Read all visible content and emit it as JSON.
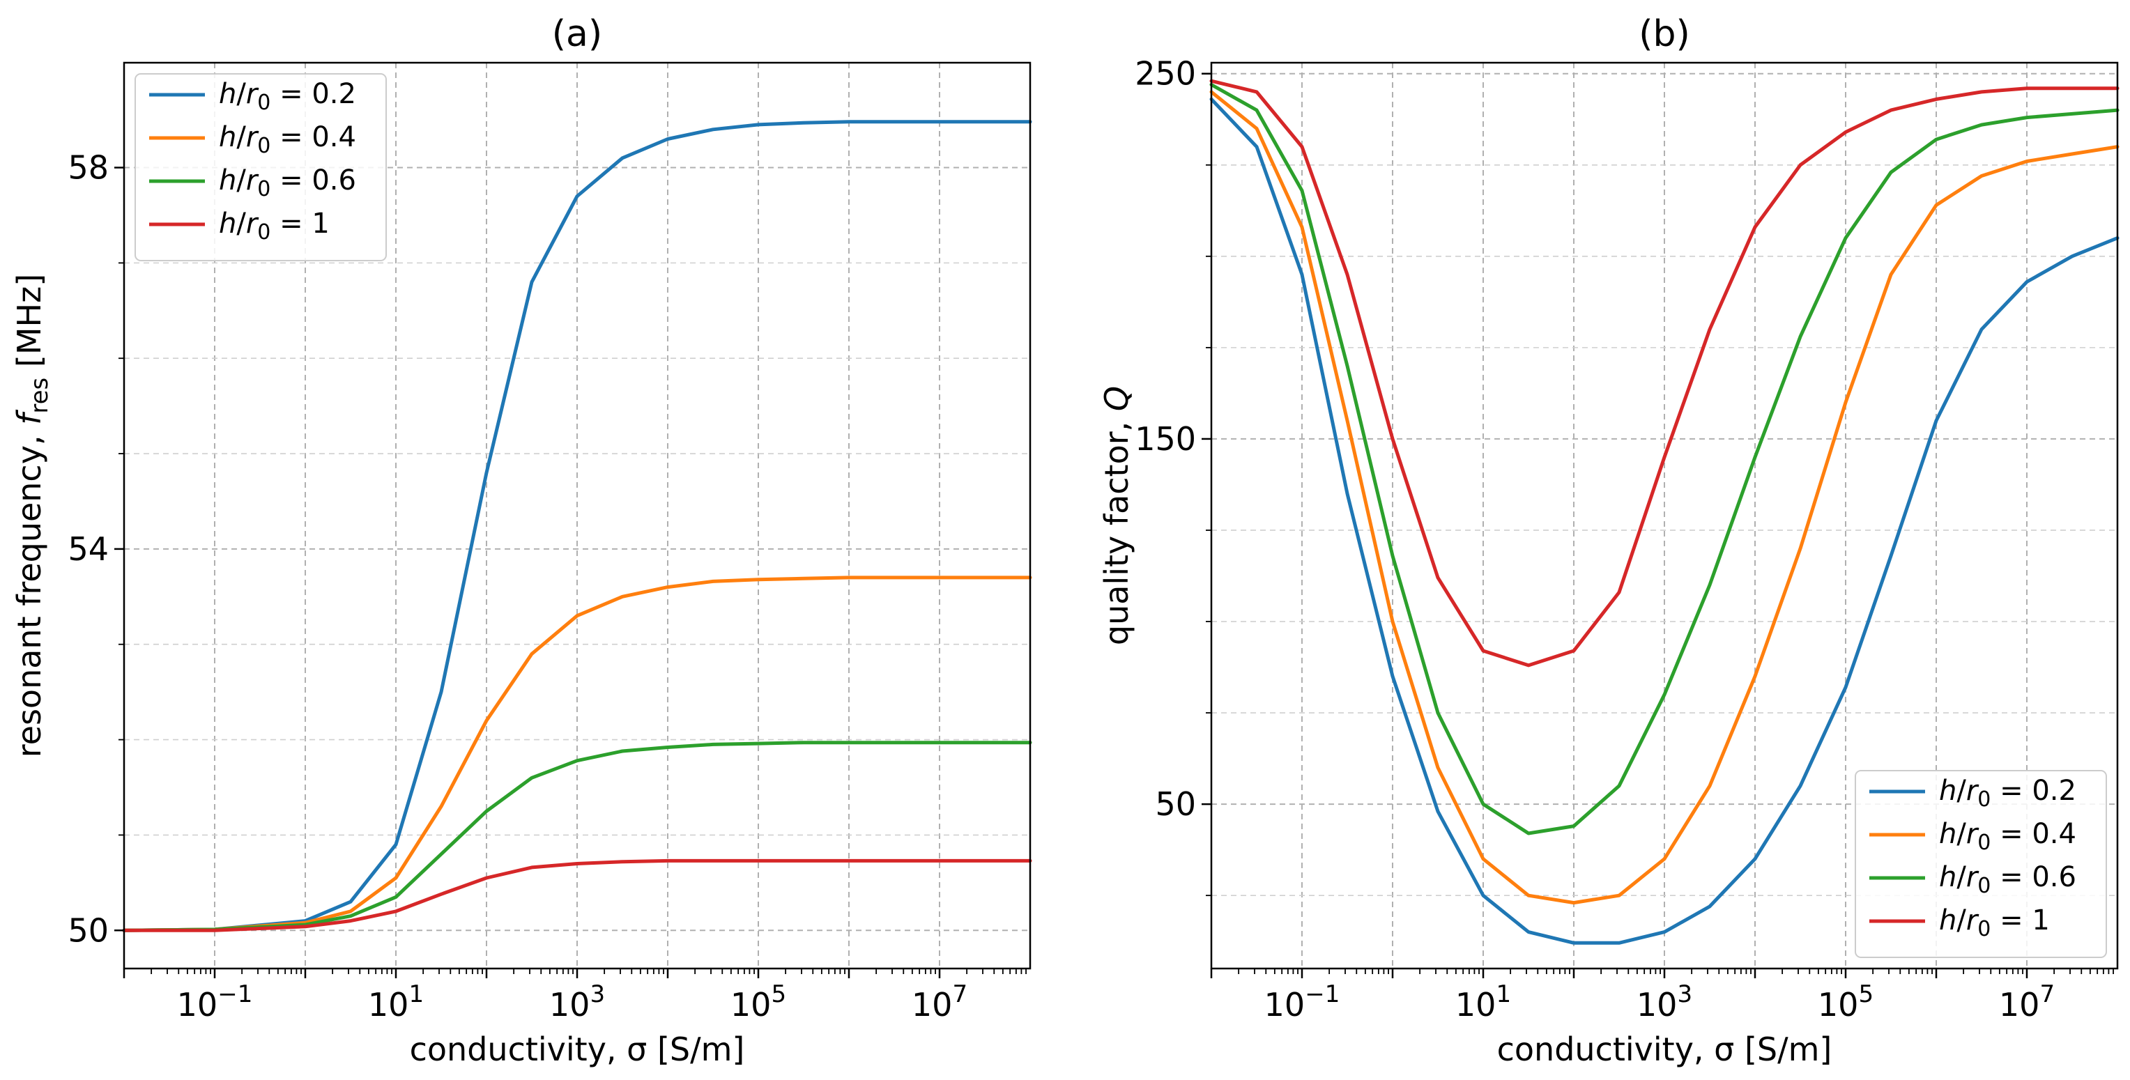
{
  "chart_data": [
    {
      "type": "line",
      "title": "(a)",
      "xlabel": "conductivity, σ [S/m]",
      "ylabel": "resonant frequency, f_res [MHz]",
      "ylabel_parts": {
        "main": "resonant frequency, ",
        "var": "f",
        "sub": "res",
        "unit": " [MHz]"
      },
      "xscale": "log",
      "xlim_exp": [
        -2,
        8
      ],
      "ylim": [
        49.6,
        59.1
      ],
      "x_ticks": [
        {
          "exp": -1,
          "label": "10",
          "sup": "−1"
        },
        {
          "exp": 1,
          "label": "10",
          "sup": "1"
        },
        {
          "exp": 3,
          "label": "10",
          "sup": "3"
        },
        {
          "exp": 5,
          "label": "10",
          "sup": "5"
        },
        {
          "exp": 7,
          "label": "10",
          "sup": "7"
        }
      ],
      "y_ticks": [
        {
          "value": 50,
          "label": "50"
        },
        {
          "value": 54,
          "label": "54"
        },
        {
          "value": 58,
          "label": "58"
        }
      ],
      "y_minor": [
        51,
        52,
        53,
        55,
        56,
        57
      ],
      "grid": true,
      "legend_position": "top-left",
      "series": [
        {
          "name": "h/r0 = 0.2",
          "ratio": "0.2",
          "color": "#1f77b4",
          "log_sigma": [
            -2,
            -1,
            0,
            0.5,
            1,
            1.5,
            2,
            2.5,
            3,
            3.5,
            4,
            4.5,
            5,
            5.5,
            6,
            7,
            8
          ],
          "values": [
            50,
            50.01,
            50.1,
            50.3,
            50.9,
            52.5,
            54.8,
            56.8,
            57.7,
            58.1,
            58.3,
            58.4,
            58.45,
            58.47,
            58.48,
            58.48,
            58.48
          ]
        },
        {
          "name": "h/r0 = 0.4",
          "ratio": "0.4",
          "color": "#ff7f0e",
          "log_sigma": [
            -2,
            -1,
            0,
            0.5,
            1,
            1.5,
            2,
            2.5,
            3,
            3.5,
            4,
            4.5,
            5,
            5.5,
            6,
            7,
            8
          ],
          "values": [
            50,
            50.01,
            50.08,
            50.2,
            50.55,
            51.3,
            52.2,
            52.9,
            53.3,
            53.5,
            53.6,
            53.66,
            53.68,
            53.69,
            53.7,
            53.7,
            53.7
          ]
        },
        {
          "name": "h/r0 = 0.6",
          "ratio": "0.6",
          "color": "#2ca02c",
          "log_sigma": [
            -2,
            -1,
            0,
            0.5,
            1,
            1.5,
            2,
            2.5,
            3,
            3.5,
            4,
            4.5,
            5,
            5.5,
            6,
            7,
            8
          ],
          "values": [
            50,
            50.01,
            50.06,
            50.15,
            50.35,
            50.8,
            51.25,
            51.6,
            51.78,
            51.88,
            51.92,
            51.95,
            51.96,
            51.97,
            51.97,
            51.97,
            51.97
          ]
        },
        {
          "name": "h/r0 = 1",
          "ratio": "1",
          "color": "#d62728",
          "log_sigma": [
            -2,
            -1,
            0,
            0.5,
            1,
            1.5,
            2,
            2.5,
            3,
            3.5,
            4,
            4.5,
            5,
            5.5,
            6,
            7,
            8
          ],
          "values": [
            50,
            50.0,
            50.04,
            50.1,
            50.2,
            50.38,
            50.55,
            50.66,
            50.7,
            50.72,
            50.73,
            50.73,
            50.73,
            50.73,
            50.73,
            50.73,
            50.73
          ]
        }
      ]
    },
    {
      "type": "line",
      "title": "(b)",
      "xlabel": "conductivity, σ [S/m]",
      "ylabel": "quality factor, Q",
      "ylabel_parts": {
        "main": "quality factor, ",
        "var": "Q",
        "sub": "",
        "unit": ""
      },
      "xscale": "log",
      "xlim_exp": [
        -2,
        8
      ],
      "ylim": [
        5,
        253
      ],
      "x_ticks": [
        {
          "exp": -1,
          "label": "10",
          "sup": "−1"
        },
        {
          "exp": 1,
          "label": "10",
          "sup": "1"
        },
        {
          "exp": 3,
          "label": "10",
          "sup": "3"
        },
        {
          "exp": 5,
          "label": "10",
          "sup": "5"
        },
        {
          "exp": 7,
          "label": "10",
          "sup": "7"
        }
      ],
      "y_ticks": [
        {
          "value": 50,
          "label": "50"
        },
        {
          "value": 150,
          "label": "150"
        },
        {
          "value": 250,
          "label": "250"
        }
      ],
      "y_minor": [
        25,
        75,
        100,
        125,
        175,
        200,
        225
      ],
      "grid": true,
      "legend_position": "bottom-right",
      "series": [
        {
          "name": "h/r0 = 0.2",
          "ratio": "0.2",
          "color": "#1f77b4",
          "log_sigma": [
            -2,
            -1.5,
            -1,
            -0.5,
            0,
            0.5,
            1,
            1.5,
            2,
            2.5,
            3,
            3.5,
            4,
            4.5,
            5,
            5.5,
            6,
            6.5,
            7,
            7.5,
            8
          ],
          "values": [
            243,
            230,
            195,
            135,
            85,
            48,
            25,
            15,
            12,
            12,
            15,
            22,
            35,
            55,
            82,
            118,
            155,
            180,
            193,
            200,
            205
          ]
        },
        {
          "name": "h/r0 = 0.4",
          "ratio": "0.4",
          "color": "#ff7f0e",
          "log_sigma": [
            -2,
            -1.5,
            -1,
            -0.5,
            0,
            0.5,
            1,
            1.5,
            2,
            2.5,
            3,
            3.5,
            4,
            4.5,
            5,
            5.5,
            6,
            6.5,
            7,
            7.5,
            8
          ],
          "values": [
            245,
            235,
            208,
            155,
            100,
            60,
            35,
            25,
            23,
            25,
            35,
            55,
            85,
            120,
            160,
            195,
            214,
            222,
            226,
            228,
            230
          ]
        },
        {
          "name": "h/r0 = 0.6",
          "ratio": "0.6",
          "color": "#2ca02c",
          "log_sigma": [
            -2,
            -1.5,
            -1,
            -0.5,
            0,
            0.5,
            1,
            1.5,
            2,
            2.5,
            3,
            3.5,
            4,
            4.5,
            5,
            5.5,
            6,
            6.5,
            7,
            7.5,
            8
          ],
          "values": [
            247,
            240,
            218,
            170,
            118,
            75,
            50,
            42,
            44,
            55,
            80,
            110,
            145,
            178,
            205,
            223,
            232,
            236,
            238,
            239,
            240
          ]
        },
        {
          "name": "h/r0 = 1",
          "ratio": "1",
          "color": "#d62728",
          "log_sigma": [
            -2,
            -1.5,
            -1,
            -0.5,
            0,
            0.5,
            1,
            1.5,
            2,
            2.5,
            3,
            3.5,
            4,
            4.5,
            5,
            5.5,
            6,
            6.5,
            7,
            7.5,
            8
          ],
          "values": [
            248,
            245,
            230,
            195,
            150,
            112,
            92,
            88,
            92,
            108,
            145,
            180,
            208,
            225,
            234,
            240,
            243,
            245,
            246,
            246,
            246
          ]
        }
      ]
    }
  ]
}
